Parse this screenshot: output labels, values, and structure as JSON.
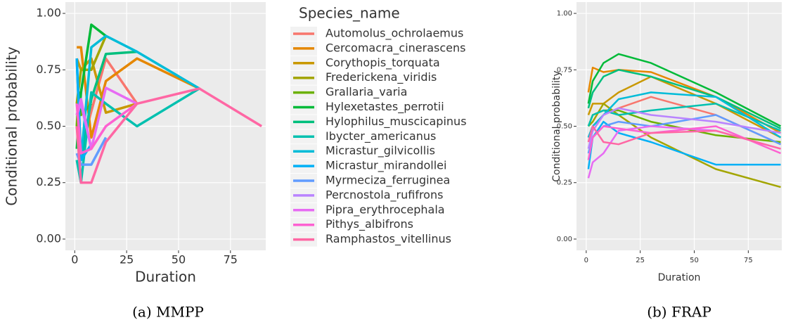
{
  "chart_data": [
    {
      "type": "line",
      "caption": "(a) MMPP",
      "xlabel": "Duration",
      "ylabel": "Conditional probability",
      "legend_title": "Species_name",
      "xlim": [
        -4.5,
        92
      ],
      "ylim": [
        -0.05,
        1.05
      ],
      "xticks": [
        0,
        25,
        50,
        75
      ],
      "yticks": [
        {
          "value": 0,
          "label": "0.00"
        },
        0.25,
        {
          "value": 0.5,
          "label": "0.50"
        },
        0.75,
        {
          "value": 1,
          "label": "1.00"
        }
      ],
      "grid": true,
      "series": [
        {
          "name": "Automolus_ochrolaemus",
          "color": "#F8766D",
          "x": [
            1,
            3,
            15,
            30
          ],
          "values": [
            0.5,
            0.4,
            0.8,
            0.6
          ]
        },
        {
          "name": "Cercomacra_cinerascens",
          "color": "#E58700",
          "x": [
            1,
            3,
            8,
            15,
            30,
            60
          ],
          "values": [
            0.85,
            0.85,
            0.45,
            0.7,
            0.8,
            0.667
          ]
        },
        {
          "name": "Corythopis_torquata",
          "color": "#C99800",
          "x": [
            1,
            3,
            8,
            15,
            30
          ],
          "values": [
            0.8,
            0.75,
            0.8,
            0.56,
            0.6
          ]
        },
        {
          "name": "Fredericke­na_viridis",
          "color": "#A3A500",
          "x": [
            1,
            3,
            8,
            15
          ],
          "values": [
            0.6,
            0.75,
            0.75,
            0.9
          ]
        },
        {
          "name": "Grallaria_varia",
          "color": "#6BB100",
          "x": [
            1,
            2,
            3,
            8
          ],
          "values": [
            0.5,
            0.65,
            0.55,
            0.6
          ]
        },
        {
          "name": "Hylexetastes_perrotii",
          "color": "#00BA38",
          "x": [
            1,
            3,
            8,
            15
          ],
          "values": [
            0.4,
            0.65,
            0.95,
            0.9
          ]
        },
        {
          "name": "Hylophilus_muscicapinus",
          "color": "#00BF7D",
          "x": [
            1,
            3,
            8,
            15,
            30
          ],
          "values": [
            0.5,
            0.35,
            0.62,
            0.82,
            0.83
          ]
        },
        {
          "name": "Ibycter_americanus",
          "color": "#00C0AF",
          "x": [
            1,
            3,
            8,
            15,
            30,
            60
          ],
          "values": [
            0.35,
            0.25,
            0.65,
            0.6,
            0.5,
            0.667
          ]
        },
        {
          "name": "Micrastur_gilvicollis",
          "color": "#00BCD8",
          "x": [
            1,
            3,
            8,
            15,
            30,
            60
          ],
          "values": [
            0.8,
            0.35,
            0.85,
            0.9,
            0.83,
            0.667
          ]
        },
        {
          "name": "Micrastur_mirandollei",
          "color": "#00B0F6",
          "x": [
            1,
            3,
            8
          ],
          "values": [
            0.8,
            0.35,
            0.42
          ]
        },
        {
          "name": "Myrmeciza_ferruginea",
          "color": "#619CFF",
          "x": [
            1,
            3,
            8,
            15
          ],
          "values": [
            0.38,
            0.33,
            0.33,
            0.45
          ]
        },
        {
          "name": "Percnostola_rufifrons",
          "color": "#B983FF",
          "x": [
            1,
            3,
            8
          ],
          "values": [
            0.55,
            0.6,
            0.4
          ]
        },
        {
          "name": "Pipra_erythrocephala",
          "color": "#E76BF3",
          "x": [
            1,
            3,
            8,
            15,
            30
          ],
          "values": [
            0.55,
            0.62,
            0.4,
            0.67,
            0.6
          ]
        },
        {
          "name": "Pithys_albifrons",
          "color": "#FD61D1",
          "x": [
            1,
            3,
            8,
            15,
            30
          ],
          "values": [
            0.6,
            0.38,
            0.4,
            0.5,
            0.6
          ]
        },
        {
          "name": "Ramphastos_vitellinus",
          "color": "#FF67A4",
          "x": [
            1,
            3,
            8,
            15,
            30,
            60,
            90
          ],
          "values": [
            0.5,
            0.25,
            0.25,
            0.43,
            0.6,
            0.667,
            0.5
          ]
        }
      ]
    },
    {
      "type": "line",
      "caption": "(b) FRAP",
      "xlabel": "Duration",
      "ylabel": "Conditional probability",
      "xlim": [
        -4.5,
        90.5
      ],
      "ylim": [
        -0.05,
        1.05
      ],
      "xticks": [
        0,
        25,
        50,
        75
      ],
      "yticks": [
        {
          "value": 0,
          "label": "0.00"
        },
        0.25,
        {
          "value": 0.5,
          "label": "0.50"
        },
        0.75,
        {
          "value": 1,
          "label": "1.00"
        }
      ],
      "grid": true,
      "x": [
        1,
        3,
        8,
        15,
        30,
        60,
        90
      ],
      "series": [
        {
          "color": "#F8766D",
          "values": [
            0.45,
            0.5,
            0.55,
            0.58,
            0.63,
            0.55,
            0.42
          ]
        },
        {
          "color": "#E58700",
          "values": [
            0.65,
            0.76,
            0.74,
            0.75,
            0.74,
            0.63,
            0.47
          ]
        },
        {
          "color": "#C99800",
          "values": [
            0.55,
            0.6,
            0.6,
            0.65,
            0.72,
            0.6,
            0.45
          ]
        },
        {
          "color": "#A3A500",
          "values": [
            0.5,
            0.52,
            0.6,
            0.55,
            0.45,
            0.31,
            0.23
          ]
        },
        {
          "color": "#6BB100",
          "values": [
            0.5,
            0.55,
            0.57,
            0.57,
            0.52,
            0.46,
            0.43
          ]
        },
        {
          "color": "#00BA38",
          "values": [
            0.6,
            0.7,
            0.78,
            0.82,
            0.78,
            0.65,
            0.5
          ]
        },
        {
          "color": "#00BF7D",
          "values": [
            0.58,
            0.65,
            0.72,
            0.75,
            0.72,
            0.63,
            0.49
          ]
        },
        {
          "color": "#00C0AF",
          "values": [
            0.5,
            0.55,
            0.57,
            0.55,
            0.57,
            0.6,
            0.48
          ]
        },
        {
          "color": "#00BCD8",
          "values": [
            0.45,
            0.5,
            0.55,
            0.62,
            0.65,
            0.63,
            0.45
          ]
        },
        {
          "color": "#00B0F6",
          "values": [
            0.31,
            0.45,
            0.52,
            0.47,
            0.43,
            0.33,
            0.33
          ]
        },
        {
          "color": "#619CFF",
          "values": [
            0.38,
            0.45,
            0.5,
            0.52,
            0.5,
            0.55,
            0.42
          ]
        },
        {
          "color": "#B983FF",
          "values": [
            0.4,
            0.48,
            0.55,
            0.58,
            0.55,
            0.52,
            0.47
          ]
        },
        {
          "color": "#E76BF3",
          "values": [
            0.27,
            0.34,
            0.38,
            0.48,
            0.5,
            0.48,
            0.4
          ]
        },
        {
          "color": "#FD61D1",
          "values": [
            0.35,
            0.45,
            0.5,
            0.49,
            0.47,
            0.5,
            0.38
          ]
        },
        {
          "color": "#FF67A4",
          "values": [
            0.43,
            0.5,
            0.43,
            0.42,
            0.47,
            0.48,
            0.4
          ]
        }
      ]
    }
  ]
}
